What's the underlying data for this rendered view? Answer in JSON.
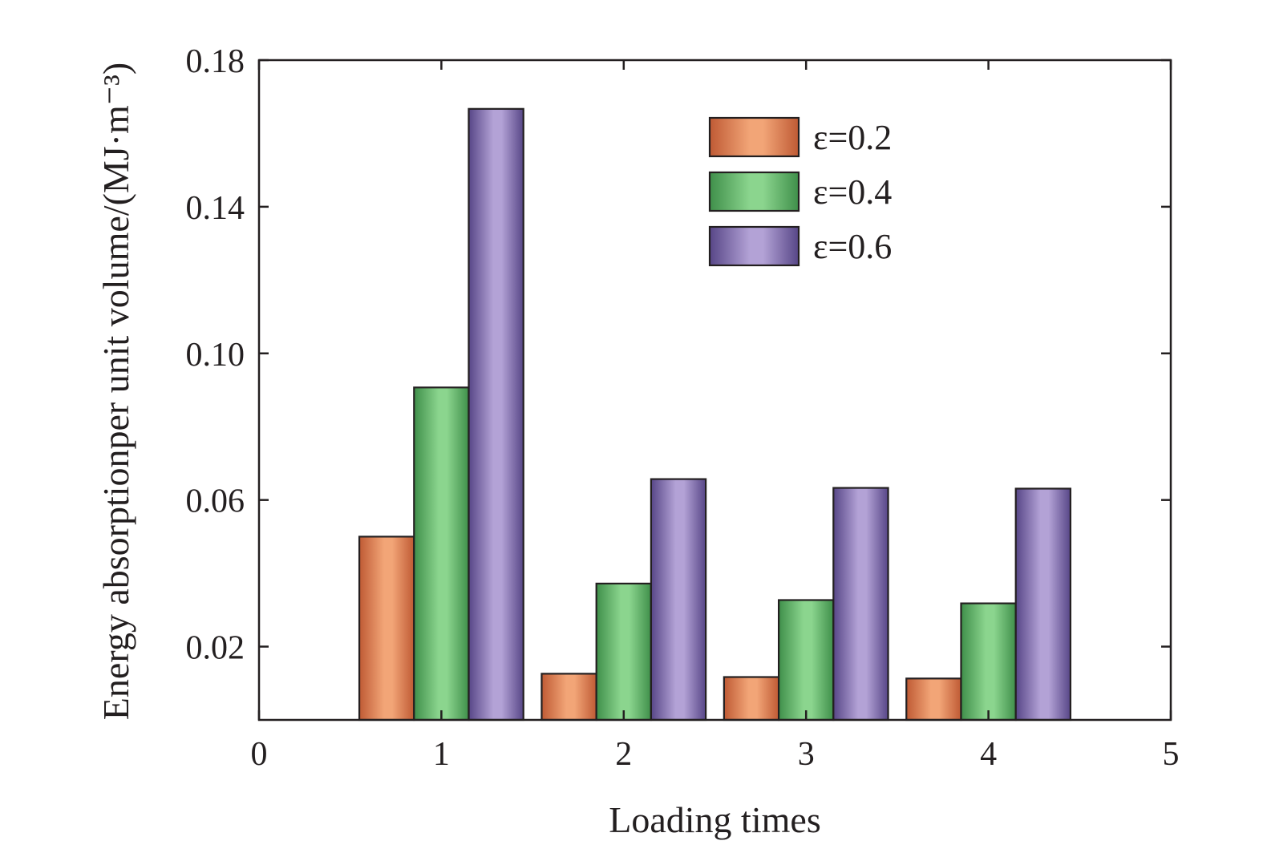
{
  "chart_data": {
    "type": "bar",
    "xlabel": "Loading times",
    "ylabel": "Energy absorptionper unit volume/(MJ·m⁻³)",
    "categories": [
      "1",
      "2",
      "3",
      "4"
    ],
    "x": [
      1,
      2,
      3,
      4
    ],
    "xlim": [
      0,
      5
    ],
    "ylim": [
      0,
      0.18
    ],
    "x_ticks": [
      "0",
      "1",
      "2",
      "3",
      "4",
      "5"
    ],
    "y_ticks": [
      "0.02",
      "0.06",
      "0.10",
      "0.14",
      "0.18"
    ],
    "y_tick_values": [
      0.02,
      0.06,
      0.1,
      0.14,
      0.18
    ],
    "grid": false,
    "legend_position": "top-right",
    "series": [
      {
        "name": "ε=0.2",
        "values": [
          0.05,
          0.0126,
          0.0117,
          0.0113
        ],
        "color": "#f2a577",
        "edge_color": "#bf5a34"
      },
      {
        "name": "ε=0.4",
        "values": [
          0.0907,
          0.0372,
          0.0327,
          0.0318
        ],
        "color": "#8bd58e",
        "edge_color": "#3f8f4a"
      },
      {
        "name": "ε=0.6",
        "values": [
          0.1667,
          0.0657,
          0.0633,
          0.0631
        ],
        "color": "#b3a2d6",
        "edge_color": "#574687"
      }
    ]
  }
}
